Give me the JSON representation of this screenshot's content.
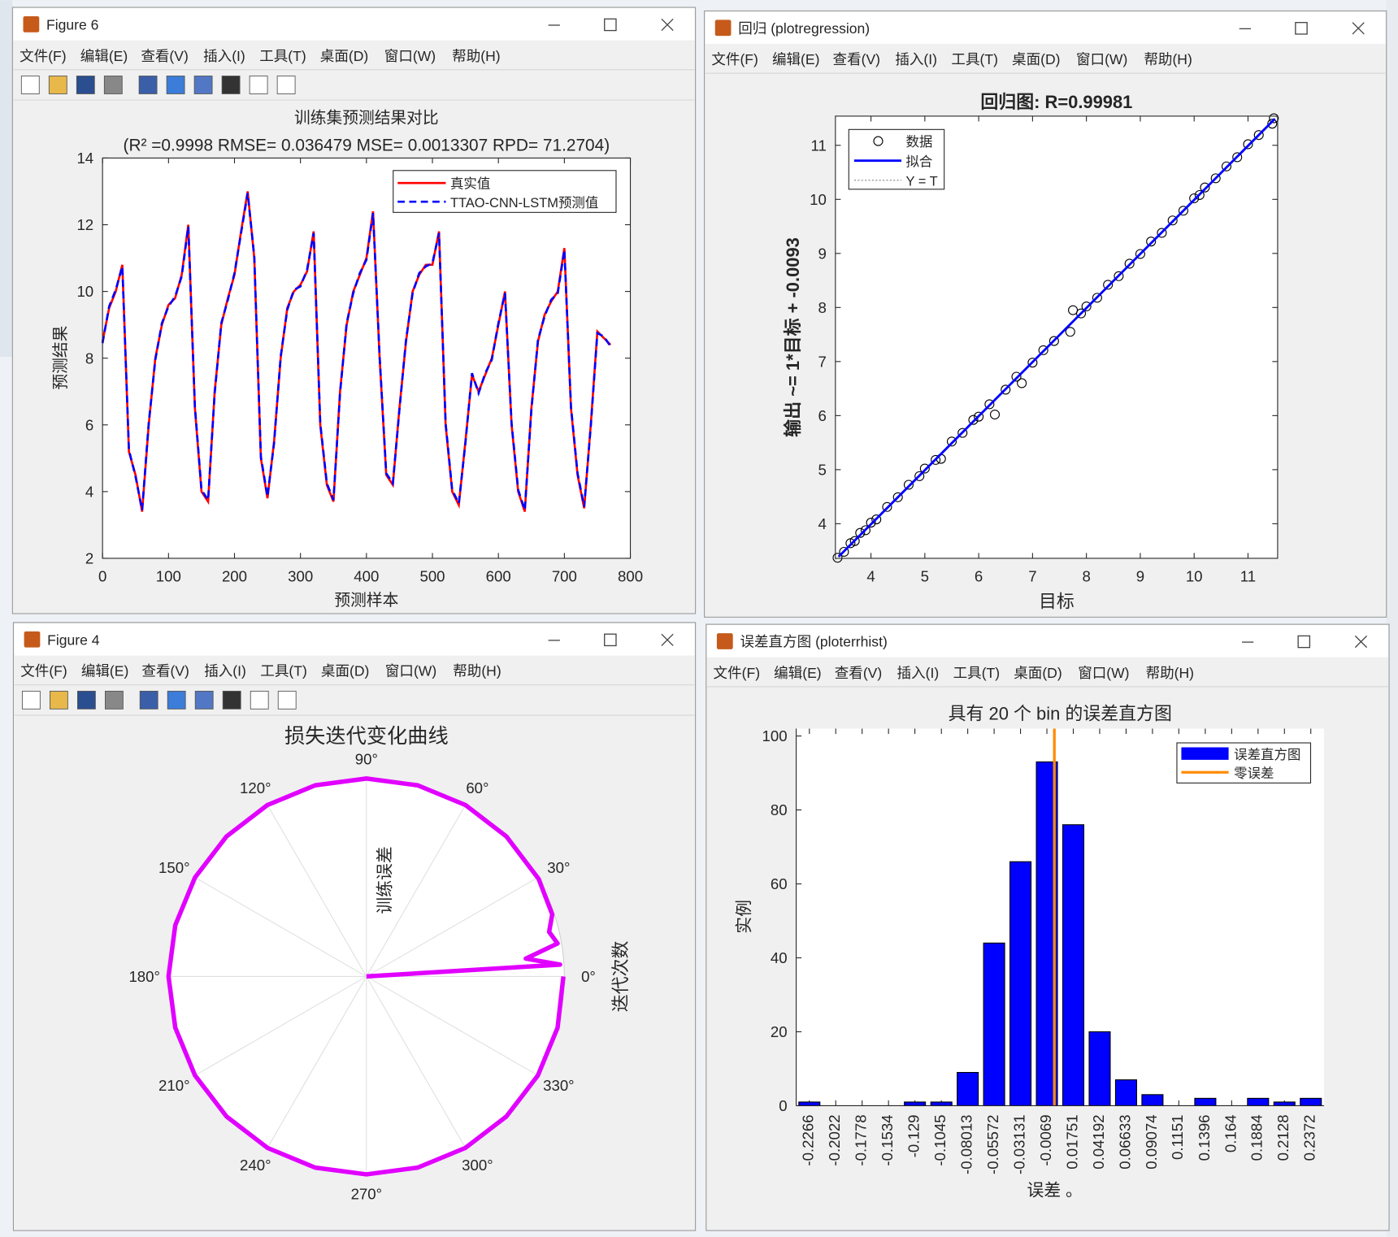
{
  "windows": [
    {
      "title": "Figure 6",
      "menus": [
        "文件(F)",
        "编辑(E)",
        "查看(V)",
        "插入(I)",
        "工具(T)",
        "桌面(D)",
        "窗口(W)",
        "帮助(H)"
      ]
    },
    {
      "title": "回归 (plotregression)",
      "menus": [
        "文件(F)",
        "编辑(E)",
        "查看(V)",
        "插入(I)",
        "工具(T)",
        "桌面(D)",
        "窗口(W)",
        "帮助(H)"
      ]
    },
    {
      "title": "Figure 4",
      "menus": [
        "文件(F)",
        "编辑(E)",
        "查看(V)",
        "插入(I)",
        "工具(T)",
        "桌面(D)",
        "窗口(W)",
        "帮助(H)"
      ]
    },
    {
      "title": "误差直方图 (ploterrhist)",
      "menus": [
        "文件(F)",
        "编辑(E)",
        "查看(V)",
        "插入(I)",
        "工具(T)",
        "桌面(D)",
        "窗口(W)",
        "帮助(H)"
      ]
    }
  ],
  "chart_data": [
    {
      "type": "line",
      "title": "训练集预测结果对比",
      "subtitle": "(R² =0.9998 RMSE= 0.036479 MSE= 0.0013307 RPD= 71.2704)",
      "xlabel": "预测样本",
      "ylabel": "预测结果",
      "x": [
        0,
        10,
        20,
        30,
        40,
        50,
        60,
        70,
        80,
        90,
        100,
        110,
        120,
        130,
        140,
        150,
        160,
        170,
        180,
        190,
        200,
        210,
        220,
        230,
        240,
        250,
        260,
        270,
        280,
        290,
        300,
        310,
        320,
        330,
        340,
        350,
        360,
        370,
        380,
        390,
        400,
        410,
        420,
        430,
        440,
        450,
        460,
        470,
        480,
        490,
        500,
        510,
        520,
        530,
        540,
        550,
        560,
        570,
        580,
        590,
        600,
        610,
        620,
        630,
        640,
        650,
        660,
        670,
        680,
        690,
        700,
        710,
        720,
        730,
        740,
        750,
        760,
        770
      ],
      "series": [
        {
          "name": "真实值",
          "color": "#ff0000",
          "linestyle": "solid",
          "values": [
            8.5,
            9.5,
            10.0,
            10.8,
            5.2,
            4.5,
            3.4,
            6.0,
            8.0,
            9.0,
            9.6,
            9.8,
            10.5,
            12.0,
            6.5,
            4.0,
            3.7,
            7.0,
            9.0,
            9.8,
            10.5,
            11.8,
            13.0,
            11.0,
            5.0,
            3.8,
            5.5,
            8.0,
            9.5,
            10.0,
            10.2,
            10.6,
            11.8,
            6.0,
            4.2,
            3.7,
            7.0,
            9.0,
            10.0,
            10.5,
            11.0,
            12.4,
            8.0,
            4.5,
            4.2,
            6.5,
            8.5,
            10.0,
            10.5,
            10.8,
            10.8,
            11.8,
            6.0,
            4.0,
            3.6,
            5.5,
            7.5,
            7.0,
            7.5,
            8.0,
            9.0,
            10.0,
            6.0,
            4.0,
            3.4,
            6.5,
            8.5,
            9.3,
            9.7,
            10.0,
            11.3,
            6.5,
            4.5,
            3.5,
            6.0,
            8.8,
            8.6,
            8.4
          ]
        },
        {
          "name": "TTAO-CNN-LSTM预测值",
          "color": "#0000ff",
          "linestyle": "dashed",
          "values": [
            8.45,
            9.55,
            10.05,
            10.75,
            5.25,
            4.45,
            3.45,
            6.05,
            7.95,
            9.05,
            9.55,
            9.85,
            10.45,
            11.95,
            6.55,
            4.05,
            3.75,
            6.95,
            9.05,
            9.75,
            10.55,
            11.75,
            12.95,
            11.05,
            5.05,
            3.85,
            5.45,
            8.05,
            9.45,
            10.05,
            10.15,
            10.65,
            11.75,
            6.05,
            4.25,
            3.75,
            6.95,
            9.05,
            9.95,
            10.55,
            10.95,
            12.35,
            8.05,
            4.55,
            4.25,
            6.45,
            8.55,
            9.95,
            10.55,
            10.75,
            10.85,
            11.75,
            6.05,
            4.05,
            3.65,
            5.45,
            7.55,
            6.95,
            7.55,
            7.95,
            9.05,
            9.95,
            6.05,
            4.05,
            3.45,
            6.45,
            8.55,
            9.25,
            9.75,
            9.95,
            11.25,
            6.55,
            4.55,
            3.55,
            5.95,
            8.75,
            8.65,
            8.35
          ]
        }
      ],
      "xlim": [
        0,
        800
      ],
      "ylim": [
        2,
        14
      ],
      "xticks": [
        0,
        100,
        200,
        300,
        400,
        500,
        600,
        700,
        800
      ],
      "yticks": [
        2,
        4,
        6,
        8,
        10,
        12,
        14
      ],
      "legend": "upper right",
      "grid": false
    },
    {
      "type": "scatter",
      "title": "回归图: R=0.99981",
      "xlabel": "目标",
      "ylabel": "输出 ~= 1*目标 + -0.0093",
      "legend_labels": [
        "数据",
        "拟合",
        "Y = T"
      ],
      "marker_color": "#000000",
      "fit_color": "#0000ff",
      "identity_color": "#888888",
      "x": [
        3.38,
        3.5,
        3.62,
        3.7,
        3.8,
        3.9,
        4.0,
        4.1,
        4.3,
        4.5,
        4.7,
        4.9,
        5.0,
        5.2,
        5.3,
        5.5,
        5.7,
        5.9,
        6.0,
        6.2,
        6.3,
        6.5,
        6.7,
        6.8,
        7.0,
        7.2,
        7.4,
        7.7,
        7.75,
        7.9,
        8.0,
        8.2,
        8.4,
        8.6,
        8.8,
        9.0,
        9.2,
        9.4,
        9.6,
        9.8,
        10.0,
        10.1,
        10.2,
        10.4,
        10.6,
        10.8,
        11.0,
        11.2,
        11.45,
        11.48
      ],
      "y": [
        3.37,
        3.48,
        3.64,
        3.68,
        3.83,
        3.88,
        4.02,
        4.08,
        4.31,
        4.49,
        4.72,
        4.88,
        5.02,
        5.18,
        5.2,
        5.52,
        5.68,
        5.92,
        5.98,
        6.21,
        6.02,
        6.48,
        6.72,
        6.6,
        6.98,
        7.21,
        7.38,
        7.55,
        7.95,
        7.89,
        8.02,
        8.18,
        8.42,
        8.58,
        8.81,
        8.99,
        9.22,
        9.38,
        9.61,
        9.79,
        10.02,
        10.08,
        10.22,
        10.39,
        10.61,
        10.78,
        11.02,
        11.19,
        11.4,
        11.5
      ],
      "fit_line": {
        "x": [
          3.4,
          11.5
        ],
        "y": [
          3.3907,
          11.4907
        ]
      },
      "xlim": [
        3.34,
        11.55
      ],
      "ylim": [
        3.36,
        11.54
      ],
      "xticks": [
        4,
        5,
        6,
        7,
        8,
        9,
        10,
        11
      ],
      "yticks": [
        4,
        5,
        6,
        7,
        8,
        9,
        10,
        11
      ],
      "legend": "upper left"
    },
    {
      "type": "polar",
      "title": "损失迭代变化曲线",
      "rlabel": "训练误差",
      "thetalabel": "迭代次数",
      "color": "#e100ff",
      "theta": [
        0,
        3.5,
        6.4,
        9.8,
        13.7,
        18.5,
        24,
        29.5,
        45,
        60,
        75,
        90,
        105,
        120,
        135,
        150,
        165,
        180,
        195,
        210,
        225,
        240,
        255,
        270,
        285,
        300,
        315,
        330,
        345,
        360
      ],
      "r": [
        0,
        0.98,
        0.81,
        0.98,
        0.95,
        0.99,
        0.99,
        1,
        1,
        1,
        1,
        1,
        1,
        1,
        1,
        1,
        1,
        1,
        1,
        1,
        1,
        1,
        1,
        1,
        1,
        1,
        1,
        1,
        1,
        0.995
      ],
      "rlim": [
        0,
        1
      ],
      "thetaticks": [
        {
          "value": 0,
          "label": "0°"
        },
        {
          "value": 30,
          "label": "30°"
        },
        {
          "value": 60,
          "label": "60°"
        },
        {
          "value": 90,
          "label": "90°"
        },
        {
          "value": 120,
          "label": "120°"
        },
        {
          "value": 150,
          "label": "150°"
        },
        {
          "value": 180,
          "label": "180°"
        },
        {
          "value": 210,
          "label": "210°"
        },
        {
          "value": 240,
          "label": "240°"
        },
        {
          "value": 270,
          "label": "270°"
        },
        {
          "value": 300,
          "label": "300°"
        },
        {
          "value": 330,
          "label": "330°"
        }
      ]
    },
    {
      "type": "histogram",
      "title": "具有 20 个 bin 的误差直方图",
      "xlabel": "误差 。",
      "ylabel": "实例",
      "color": "#0000ff",
      "zero_color": "#ff8c00",
      "legend_labels": [
        "误差直方图",
        "零误差"
      ],
      "zero_line": 0,
      "x": [
        -0.2266,
        -0.2022,
        -0.1778,
        -0.1534,
        -0.129,
        -0.1045,
        -0.08013,
        -0.05572,
        -0.03131,
        -0.0069,
        0.01751,
        0.04192,
        0.06633,
        0.09074,
        0.1151,
        0.1396,
        0.164,
        0.1884,
        0.2128,
        0.2372
      ],
      "values": [
        1,
        0,
        0,
        0,
        1,
        1,
        9,
        44,
        66,
        93,
        76,
        20,
        7,
        3,
        0,
        2,
        0,
        2,
        1,
        2
      ],
      "xticks": [
        -0.2266,
        -0.2022,
        -0.1778,
        -0.1534,
        -0.129,
        -0.1045,
        -0.08013,
        -0.05572,
        -0.03131,
        -0.0069,
        0.01751,
        0.04192,
        0.06633,
        0.09074,
        0.1151,
        0.1396,
        0.164,
        0.1884,
        0.2128,
        0.2372
      ],
      "xlim": [
        -0.2388,
        0.2494
      ],
      "ylim": [
        0,
        102
      ],
      "yticks": [
        0,
        20,
        40,
        60,
        80,
        100
      ],
      "legend": "upper right"
    }
  ]
}
